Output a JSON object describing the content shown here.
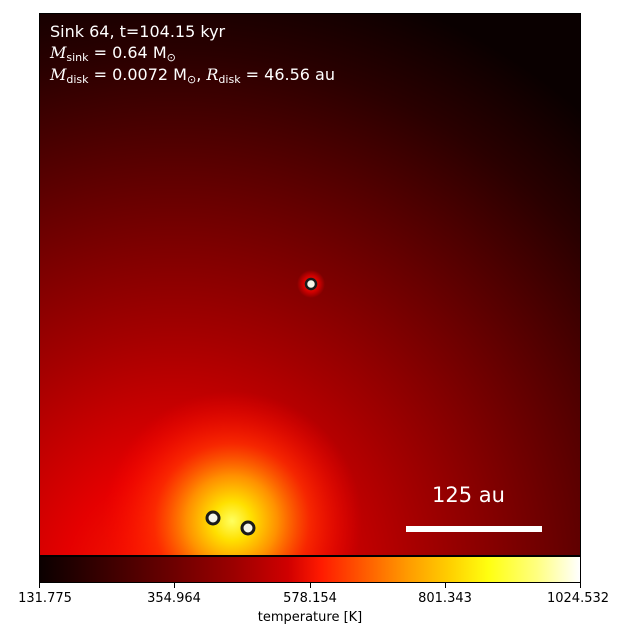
{
  "info": {
    "line1": "Sink 64, t=104.15 kyr",
    "msink_symbol": "M",
    "msink_sub": "sink",
    "msink_value": " = 0.64 M",
    "msink_sun": "⊙",
    "mdisk_symbol": "M",
    "mdisk_sub": "disk",
    "mdisk_value": " = 0.0072 M",
    "mdisk_sun": "⊙",
    "rdisk_symbol": "R",
    "rdisk_sub": "disk",
    "rdisk_value": " = 46.56 au",
    "separator": ", "
  },
  "scale_bar": {
    "label": "125 au"
  },
  "colorbar": {
    "label": "temperature [K]",
    "ticks": [
      "131.775",
      "354.964",
      "578.154",
      "801.343",
      "1024.532"
    ]
  },
  "colors": {
    "colormap": "hot",
    "sink_outline": "#1a1a1a",
    "sink_fill": "#f5f5e8"
  }
}
